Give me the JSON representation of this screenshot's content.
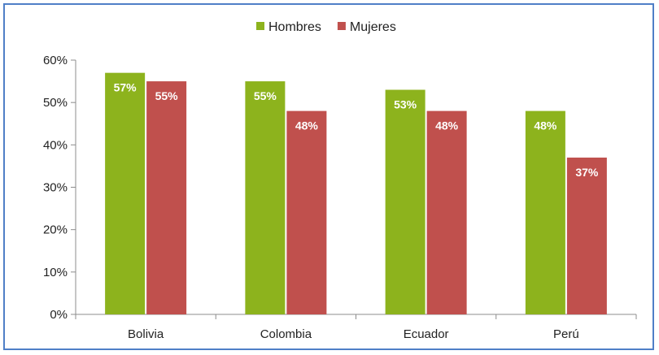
{
  "chart_data": {
    "type": "bar",
    "categories": [
      "Bolivia",
      "Colombia",
      "Ecuador",
      "Perú"
    ],
    "series": [
      {
        "name": "Hombres",
        "color": "#8db31d",
        "values": [
          57,
          55,
          53,
          48
        ],
        "labels": [
          "57%",
          "55%",
          "53%",
          "48%"
        ]
      },
      {
        "name": "Mujeres",
        "color": "#c0504d",
        "values": [
          55,
          48,
          48,
          37
        ],
        "labels": [
          "55%",
          "48%",
          "48%",
          "37%"
        ]
      }
    ],
    "yticks": [
      "0%",
      "10%",
      "20%",
      "30%",
      "40%",
      "50%",
      "60%"
    ],
    "ylim": [
      0,
      60
    ],
    "legend_position": "top-center",
    "grid": false
  }
}
